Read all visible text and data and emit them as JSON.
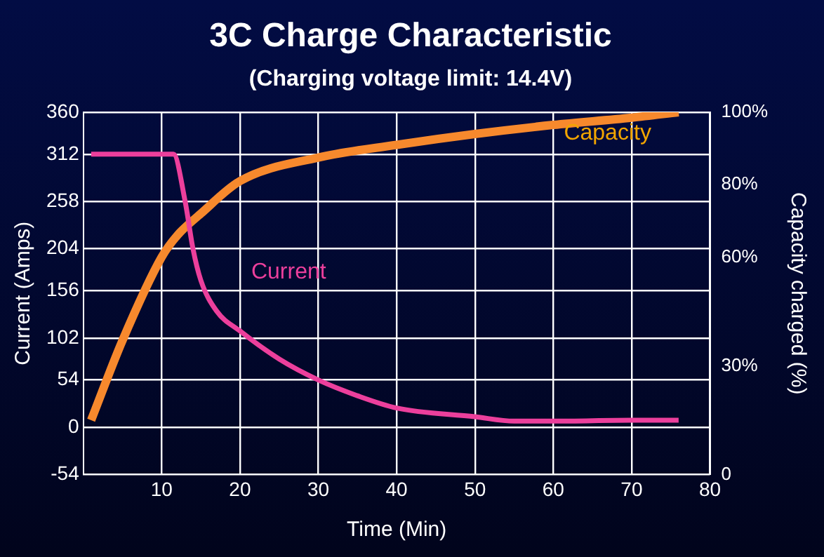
{
  "chart_data": {
    "type": "line",
    "title": "3C Charge Characteristic",
    "subtitle": "(Charging voltage limit: 14.4V)",
    "xlabel": "Time (Min)",
    "ylabel": "Current (Amps)",
    "y2label": "Capacity charged (%)",
    "xlim": [
      0,
      80
    ],
    "xticks": [
      10,
      20,
      30,
      40,
      50,
      60,
      70,
      80
    ],
    "ylim": [
      -54,
      360
    ],
    "yticks": [
      -54,
      0,
      54,
      102,
      156,
      204,
      258,
      312,
      360
    ],
    "y2lim": [
      0,
      100
    ],
    "y2ticks": [
      0,
      {
        "value": 30,
        "label": "30%"
      },
      {
        "value": 60,
        "label": "60%"
      },
      {
        "value": 80,
        "label": "80%"
      },
      {
        "value": 100,
        "label": "100%"
      }
    ],
    "grid": true,
    "legend": false,
    "marker": "none",
    "line_style": "solid",
    "series": [
      {
        "name": "Current",
        "color": "#ec3f9c",
        "x": [
          1,
          5,
          10,
          11.5,
          13,
          14,
          15,
          17,
          20,
          25,
          30,
          35,
          40,
          50,
          55,
          60,
          70,
          76
        ],
        "values": [
          312,
          312,
          312,
          312,
          258,
          204,
          168,
          133,
          110,
          78,
          54,
          36,
          22,
          12,
          7,
          7,
          8,
          8
        ]
      },
      {
        "name": "Capacity",
        "color": "#f7892d",
        "axis": "y2",
        "x": [
          1,
          5,
          10,
          12,
          15,
          20,
          30,
          40,
          50,
          60,
          70,
          76
        ],
        "values": [
          15,
          37,
          60,
          66,
          72,
          81,
          87.5,
          91,
          94,
          96.5,
          98.5,
          100
        ]
      }
    ]
  }
}
